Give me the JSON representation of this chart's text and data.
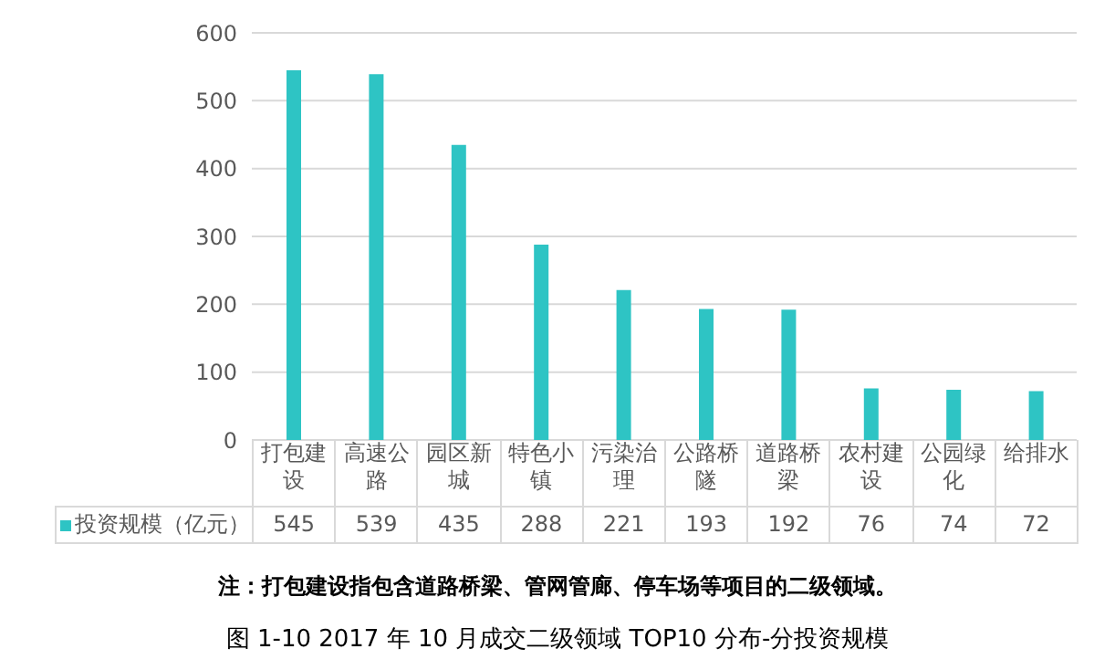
{
  "chart_data": {
    "type": "bar",
    "title": "图 1-10 2017 年 10 月成交二级领域 TOP10 分布-分投资规模",
    "annotations": [
      "注：打包建设指包含道路桥梁、管网管廊、停车场等项目的二级领域。"
    ],
    "categories": [
      "打包建设",
      "高速公路",
      "园区新城",
      "特色小镇",
      "污染治理",
      "公路桥隧",
      "道路桥梁",
      "农村建设",
      "公园绿化",
      "给排水"
    ],
    "series": [
      {
        "name": "投资规模（亿元）",
        "color": "#2ec4c4",
        "values": [
          545,
          539,
          435,
          288,
          221,
          193,
          192,
          76,
          74,
          72
        ]
      }
    ],
    "ylim": [
      0,
      600
    ],
    "yticks": [
      0,
      100,
      200,
      300,
      400,
      500,
      600
    ],
    "grid": "y",
    "legend": "bottom",
    "data_labels": true
  }
}
